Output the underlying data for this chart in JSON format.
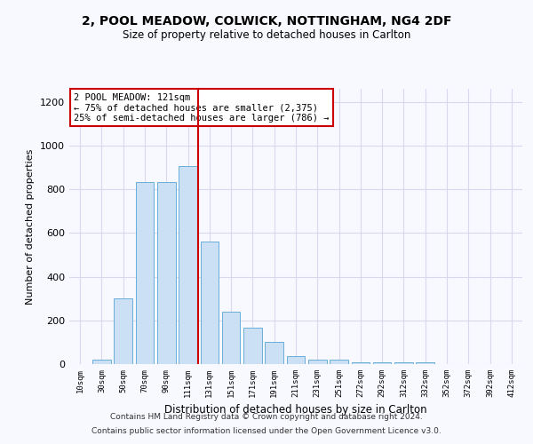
{
  "title_line1": "2, POOL MEADOW, COLWICK, NOTTINGHAM, NG4 2DF",
  "title_line2": "Size of property relative to detached houses in Carlton",
  "xlabel": "Distribution of detached houses by size in Carlton",
  "ylabel": "Number of detached properties",
  "bar_labels": [
    "10sqm",
    "30sqm",
    "50sqm",
    "70sqm",
    "90sqm",
    "111sqm",
    "131sqm",
    "151sqm",
    "171sqm",
    "191sqm",
    "211sqm",
    "231sqm",
    "251sqm",
    "272sqm",
    "292sqm",
    "312sqm",
    "332sqm",
    "352sqm",
    "372sqm",
    "392sqm",
    "412sqm"
  ],
  "bar_values": [
    0,
    20,
    300,
    835,
    835,
    905,
    560,
    240,
    165,
    100,
    35,
    20,
    20,
    8,
    10,
    10,
    10,
    0,
    0,
    0,
    0
  ],
  "bar_color": "#cce0f5",
  "bar_edge_color": "#6aaed6",
  "vline_x_index": 5,
  "vline_color": "#cc0000",
  "annotation_line1": "2 POOL MEADOW: 121sqm",
  "annotation_line2": "← 75% of detached houses are smaller (2,375)",
  "annotation_line3": "25% of semi-detached houses are larger (786) →",
  "annotation_box_facecolor": "#ffffff",
  "annotation_box_edgecolor": "#cc0000",
  "ylim": [
    0,
    1260
  ],
  "yticks": [
    0,
    200,
    400,
    600,
    800,
    1000,
    1200
  ],
  "footer1": "Contains HM Land Registry data © Crown copyright and database right 2024.",
  "footer2": "Contains public sector information licensed under the Open Government Licence v3.0.",
  "bg_color": "#f8f8ff",
  "grid_color": "#d8d8ee"
}
